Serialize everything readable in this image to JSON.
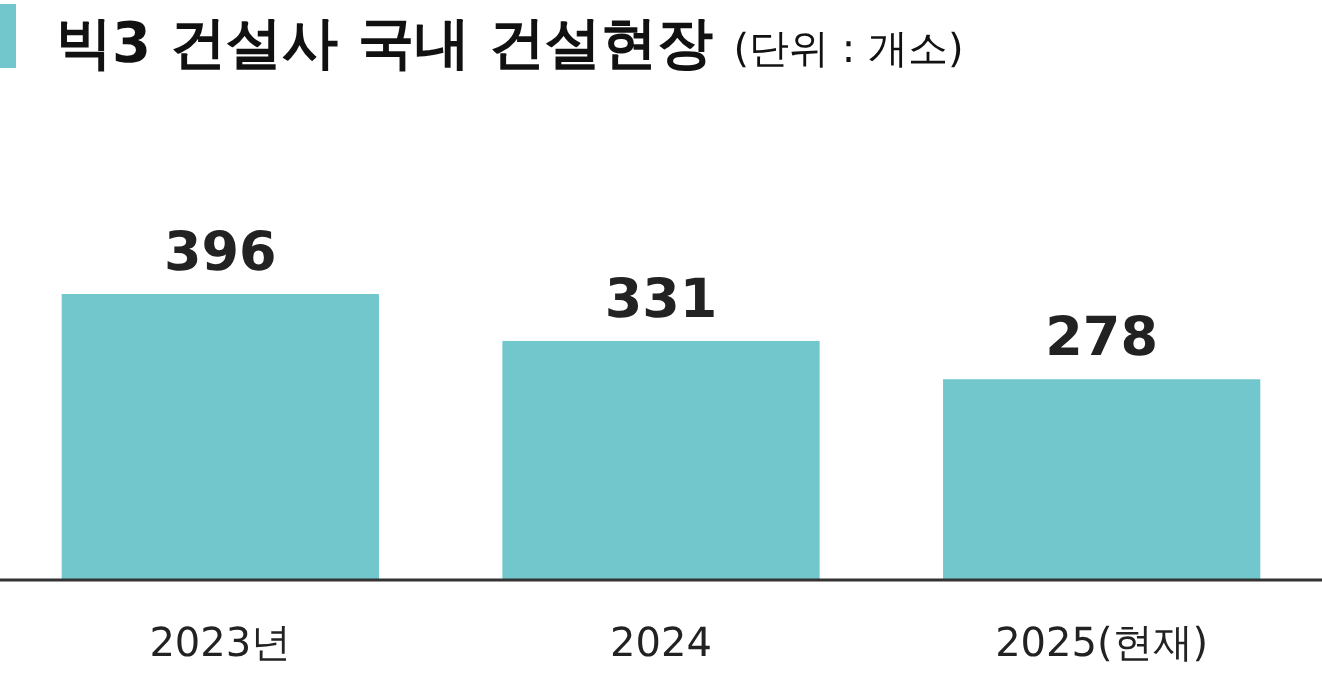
{
  "chart_data": {
    "type": "bar",
    "title": "빅3 건설사 국내 건설현장",
    "subtitle": "(단위 : 개소)",
    "categories": [
      "2023년",
      "2024",
      "2025(현재)"
    ],
    "values": [
      396,
      331,
      278
    ],
    "color": "#72c7cd",
    "data_labels": true
  }
}
